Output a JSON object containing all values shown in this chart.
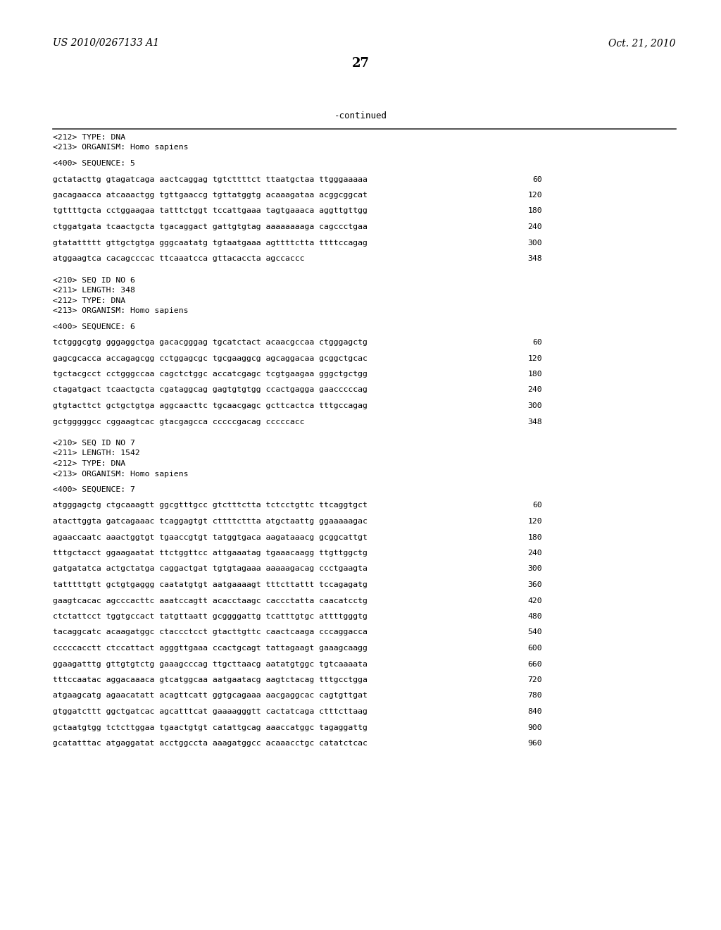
{
  "page_left": "US 2010/0267133 A1",
  "page_right": "Oct. 21, 2010",
  "page_number": "27",
  "continued_label": "-continued",
  "background_color": "#ffffff",
  "text_color": "#000000",
  "lines": [
    {
      "type": "header",
      "text": "<212> TYPE: DNA"
    },
    {
      "type": "header",
      "text": "<213> ORGANISM: Homo sapiens"
    },
    {
      "type": "blank"
    },
    {
      "type": "header",
      "text": "<400> SEQUENCE: 5"
    },
    {
      "type": "blank"
    },
    {
      "type": "seq",
      "text": "gctatacttg gtagatcaga aactcaggag tgtcttttct ttaatgctaa ttgggaaaaa",
      "num": "60"
    },
    {
      "type": "blank"
    },
    {
      "type": "seq",
      "text": "gacagaacca atcaaactgg tgttgaaccg tgttatggtg acaaagataa acggcggcat",
      "num": "120"
    },
    {
      "type": "blank"
    },
    {
      "type": "seq",
      "text": "tgttttgcta cctggaagaa tatttctggt tccattgaaa tagtgaaaca aggttgttgg",
      "num": "180"
    },
    {
      "type": "blank"
    },
    {
      "type": "seq",
      "text": "ctggatgata tcaactgcta tgacaggact gattgtgtag aaaaaaaaga cagccctgaa",
      "num": "240"
    },
    {
      "type": "blank"
    },
    {
      "type": "seq",
      "text": "gtatattttt gttgctgtga gggcaatatg tgtaatgaaa agttttctta ttttccagag",
      "num": "300"
    },
    {
      "type": "blank"
    },
    {
      "type": "seq",
      "text": "atggaagtca cacagcccac ttcaaatcca gttacaccta agccaccc",
      "num": "348"
    },
    {
      "type": "blank"
    },
    {
      "type": "blank"
    },
    {
      "type": "header",
      "text": "<210> SEQ ID NO 6"
    },
    {
      "type": "header",
      "text": "<211> LENGTH: 348"
    },
    {
      "type": "header",
      "text": "<212> TYPE: DNA"
    },
    {
      "type": "header",
      "text": "<213> ORGANISM: Homo sapiens"
    },
    {
      "type": "blank"
    },
    {
      "type": "header",
      "text": "<400> SEQUENCE: 6"
    },
    {
      "type": "blank"
    },
    {
      "type": "seq",
      "text": "tctgggcgtg gggaggctga gacacgggag tgcatctact acaacgccaa ctgggagctg",
      "num": "60"
    },
    {
      "type": "blank"
    },
    {
      "type": "seq",
      "text": "gagcgcacca accagagcgg cctggagcgc tgcgaaggcg agcaggacaa gcggctgcac",
      "num": "120"
    },
    {
      "type": "blank"
    },
    {
      "type": "seq",
      "text": "tgctacgcct cctgggccaa cagctctggc accatcgagc tcgtgaagaa gggctgctgg",
      "num": "180"
    },
    {
      "type": "blank"
    },
    {
      "type": "seq",
      "text": "ctagatgact tcaactgcta cgataggcag gagtgtgtgg ccactgagga gaacccccag",
      "num": "240"
    },
    {
      "type": "blank"
    },
    {
      "type": "seq",
      "text": "gtgtacttct gctgctgtga aggcaacttc tgcaacgagc gcttcactca tttgccagag",
      "num": "300"
    },
    {
      "type": "blank"
    },
    {
      "type": "seq",
      "text": "gctgggggcc cggaagtcac gtacgagcca cccccgacag cccccacc",
      "num": "348"
    },
    {
      "type": "blank"
    },
    {
      "type": "blank"
    },
    {
      "type": "header",
      "text": "<210> SEQ ID NO 7"
    },
    {
      "type": "header",
      "text": "<211> LENGTH: 1542"
    },
    {
      "type": "header",
      "text": "<212> TYPE: DNA"
    },
    {
      "type": "header",
      "text": "<213> ORGANISM: Homo sapiens"
    },
    {
      "type": "blank"
    },
    {
      "type": "header",
      "text": "<400> SEQUENCE: 7"
    },
    {
      "type": "blank"
    },
    {
      "type": "seq",
      "text": "atgggagctg ctgcaaagtt ggcgtttgcc gtctttctta tctcctgttc ttcaggtgct",
      "num": "60"
    },
    {
      "type": "blank"
    },
    {
      "type": "seq",
      "text": "atacttggta gatcagaaac tcaggagtgt cttttcttta atgctaattg ggaaaaagac",
      "num": "120"
    },
    {
      "type": "blank"
    },
    {
      "type": "seq",
      "text": "agaaccaatc aaactggtgt tgaaccgtgt tatggtgaca aagataaacg gcggcattgt",
      "num": "180"
    },
    {
      "type": "blank"
    },
    {
      "type": "seq",
      "text": "tttgctacct ggaagaatat ttctggttcc attgaaatag tgaaacaagg ttgttggctg",
      "num": "240"
    },
    {
      "type": "blank"
    },
    {
      "type": "seq",
      "text": "gatgatatca actgctatga caggactgat tgtgtagaaa aaaaagacag ccctgaagta",
      "num": "300"
    },
    {
      "type": "blank"
    },
    {
      "type": "seq",
      "text": "tatttttgtt gctgtgaggg caatatgtgt aatgaaaagt tttcttattt tccagagatg",
      "num": "360"
    },
    {
      "type": "blank"
    },
    {
      "type": "seq",
      "text": "gaagtcacac agcccacttc aaatccagtt acacctaagc caccctatta caacatcctg",
      "num": "420"
    },
    {
      "type": "blank"
    },
    {
      "type": "seq",
      "text": "ctctattcct tggtgccact tatgttaatt gcggggattg tcatttgtgc attttgggtg",
      "num": "480"
    },
    {
      "type": "blank"
    },
    {
      "type": "seq",
      "text": "tacaggcatc acaagatggc ctaccctcct gtacttgttc caactcaaga cccaggacca",
      "num": "540"
    },
    {
      "type": "blank"
    },
    {
      "type": "seq",
      "text": "cccccacctt ctccattact agggttgaaa ccactgcagt tattagaagt gaaagcaagg",
      "num": "600"
    },
    {
      "type": "blank"
    },
    {
      "type": "seq",
      "text": "ggaagatttg gttgtgtctg gaaagcccag ttgcttaacg aatatgtggc tgtcaaaata",
      "num": "660"
    },
    {
      "type": "blank"
    },
    {
      "type": "seq",
      "text": "tttccaatac aggacaaaca gtcatggcaa aatgaatacg aagtctacag tttgcctgga",
      "num": "720"
    },
    {
      "type": "blank"
    },
    {
      "type": "seq",
      "text": "atgaagcatg agaacatatt acagttcatt ggtgcagaaa aacgaggcac cagtgttgat",
      "num": "780"
    },
    {
      "type": "blank"
    },
    {
      "type": "seq",
      "text": "gtggatcttt ggctgatcac agcatttcat gaaaagggtt cactatcaga ctttcttaag",
      "num": "840"
    },
    {
      "type": "blank"
    },
    {
      "type": "seq",
      "text": "gctaatgtgg tctcttggaa tgaactgtgt catattgcag aaaccatggc tagaggattg",
      "num": "900"
    },
    {
      "type": "blank"
    },
    {
      "type": "seq",
      "text": "gcatatttac atgaggatat acctggccta aaagatggcc acaaacctgc catatctcac",
      "num": "960"
    }
  ]
}
